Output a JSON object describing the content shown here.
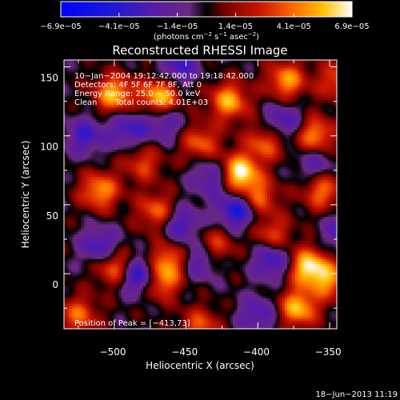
{
  "chart_data": {
    "type": "heatmap",
    "title": "Reconstructed RHESSI Image",
    "xlabel": "Heliocentric X (arcsec)",
    "ylabel": "Heliocentric Y (arcsec)",
    "xlim": [
      -535,
      -345
    ],
    "ylim": [
      -40,
      155
    ],
    "x_ticks": [
      -500,
      -450,
      -400,
      -350
    ],
    "x_tick_labels": [
      "−500",
      "−450",
      "−400",
      "−350"
    ],
    "y_ticks": [
      0,
      50,
      100,
      150
    ],
    "y_tick_labels": [
      "0",
      "50",
      "100",
      "150"
    ],
    "colorbar": {
      "range": [
        -6.9e-05,
        6.9e-05
      ],
      "tick_labels": [
        "−6.9e−05",
        "−4.1e−05",
        "−1.4e−05",
        "1.4e−05",
        "4.1e−05",
        "6.9e−05"
      ],
      "unit_prefix": "(photons cm",
      "unit_exp1": "−2",
      "unit_mid": " s",
      "unit_exp2": "−1",
      "unit_mid2": " asec",
      "unit_exp3": "−2",
      "unit_suffix": ")"
    },
    "annotations": {
      "line1": "10−Jan−2004 19:12:42.000 to 19:18:42.000",
      "line2": "Detectors: 4F 5F 6F 7F 8F, Att 0",
      "line3": "Energy Range: 25.0 − 50.0 keV",
      "line4_a": "Clean",
      "line4_b": "Total counts: 4.01E+03",
      "peak": "Position of Peak = [−413,73]"
    },
    "peak": {
      "x": -413,
      "y": 73
    },
    "blobs_max": [
      [
        -413,
        73,
        1.0
      ],
      [
        -468,
        128,
        0.85
      ],
      [
        -420,
        125,
        0.75
      ],
      [
        -380,
        140,
        0.7
      ],
      [
        -500,
        130,
        0.8
      ],
      [
        -360,
        100,
        0.7
      ],
      [
        -440,
        95,
        0.55
      ],
      [
        -510,
        60,
        0.7
      ],
      [
        -365,
        5,
        0.9
      ],
      [
        -372,
        -25,
        0.8
      ],
      [
        -470,
        -5,
        0.9
      ],
      [
        -462,
        10,
        0.6
      ],
      [
        -500,
        5,
        0.6
      ],
      [
        -470,
        45,
        0.6
      ],
      [
        -400,
        55,
        0.6
      ],
      [
        -430,
        20,
        0.5
      ],
      [
        -390,
        28,
        0.5
      ],
      [
        -525,
        -30,
        0.55
      ],
      [
        -440,
        -38,
        0.5
      ],
      [
        -355,
        60,
        0.6
      ],
      [
        -350,
        -5,
        0.6
      ],
      [
        -480,
        80,
        0.45
      ],
      [
        -395,
        95,
        0.55
      ],
      [
        -345,
        140,
        0.5
      ]
    ],
    "blobs_min": [
      [
        -480,
        -2,
        1.0
      ],
      [
        -414,
        46,
        0.75
      ],
      [
        -390,
        10,
        0.6
      ],
      [
        -454,
        36,
        0.55
      ],
      [
        -432,
        70,
        0.5
      ],
      [
        -382,
        110,
        0.5
      ],
      [
        -490,
        105,
        0.5
      ],
      [
        -510,
        20,
        0.55
      ],
      [
        -440,
        10,
        0.5
      ],
      [
        -455,
        150,
        0.5
      ],
      [
        -400,
        -30,
        0.45
      ],
      [
        -520,
        100,
        0.5
      ],
      [
        -340,
        30,
        0.5
      ],
      [
        -465,
        110,
        0.45
      ],
      [
        -360,
        80,
        0.4
      ]
    ]
  },
  "footer": {
    "timestamp": "18−Jun−2013 11:19"
  }
}
